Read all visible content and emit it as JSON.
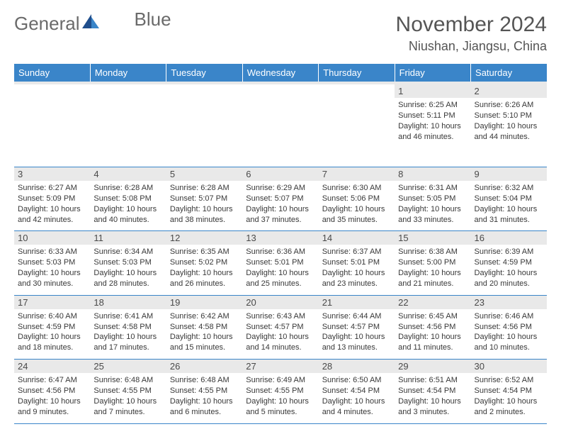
{
  "brand": {
    "name1": "General",
    "name2": "Blue"
  },
  "title": "November 2024",
  "location": "Niushan, Jiangsu, China",
  "colors": {
    "header_bg": "#3a85c9",
    "header_text": "#ffffff",
    "daynum_bg": "#e9e9e9",
    "grid_line": "#3a85c9",
    "body_text": "#383838",
    "title_text": "#555555",
    "logo_text": "#6a6a6a",
    "logo_icon_dark": "#1f4e8c",
    "logo_icon_light": "#3a85c9"
  },
  "day_headers": [
    "Sunday",
    "Monday",
    "Tuesday",
    "Wednesday",
    "Thursday",
    "Friday",
    "Saturday"
  ],
  "weeks": [
    [
      {
        "n": "",
        "sr": "",
        "ss": "",
        "dl": ""
      },
      {
        "n": "",
        "sr": "",
        "ss": "",
        "dl": ""
      },
      {
        "n": "",
        "sr": "",
        "ss": "",
        "dl": ""
      },
      {
        "n": "",
        "sr": "",
        "ss": "",
        "dl": ""
      },
      {
        "n": "",
        "sr": "",
        "ss": "",
        "dl": ""
      },
      {
        "n": "1",
        "sr": "Sunrise: 6:25 AM",
        "ss": "Sunset: 5:11 PM",
        "dl": "Daylight: 10 hours and 46 minutes."
      },
      {
        "n": "2",
        "sr": "Sunrise: 6:26 AM",
        "ss": "Sunset: 5:10 PM",
        "dl": "Daylight: 10 hours and 44 minutes."
      }
    ],
    [
      {
        "n": "3",
        "sr": "Sunrise: 6:27 AM",
        "ss": "Sunset: 5:09 PM",
        "dl": "Daylight: 10 hours and 42 minutes."
      },
      {
        "n": "4",
        "sr": "Sunrise: 6:28 AM",
        "ss": "Sunset: 5:08 PM",
        "dl": "Daylight: 10 hours and 40 minutes."
      },
      {
        "n": "5",
        "sr": "Sunrise: 6:28 AM",
        "ss": "Sunset: 5:07 PM",
        "dl": "Daylight: 10 hours and 38 minutes."
      },
      {
        "n": "6",
        "sr": "Sunrise: 6:29 AM",
        "ss": "Sunset: 5:07 PM",
        "dl": "Daylight: 10 hours and 37 minutes."
      },
      {
        "n": "7",
        "sr": "Sunrise: 6:30 AM",
        "ss": "Sunset: 5:06 PM",
        "dl": "Daylight: 10 hours and 35 minutes."
      },
      {
        "n": "8",
        "sr": "Sunrise: 6:31 AM",
        "ss": "Sunset: 5:05 PM",
        "dl": "Daylight: 10 hours and 33 minutes."
      },
      {
        "n": "9",
        "sr": "Sunrise: 6:32 AM",
        "ss": "Sunset: 5:04 PM",
        "dl": "Daylight: 10 hours and 31 minutes."
      }
    ],
    [
      {
        "n": "10",
        "sr": "Sunrise: 6:33 AM",
        "ss": "Sunset: 5:03 PM",
        "dl": "Daylight: 10 hours and 30 minutes."
      },
      {
        "n": "11",
        "sr": "Sunrise: 6:34 AM",
        "ss": "Sunset: 5:03 PM",
        "dl": "Daylight: 10 hours and 28 minutes."
      },
      {
        "n": "12",
        "sr": "Sunrise: 6:35 AM",
        "ss": "Sunset: 5:02 PM",
        "dl": "Daylight: 10 hours and 26 minutes."
      },
      {
        "n": "13",
        "sr": "Sunrise: 6:36 AM",
        "ss": "Sunset: 5:01 PM",
        "dl": "Daylight: 10 hours and 25 minutes."
      },
      {
        "n": "14",
        "sr": "Sunrise: 6:37 AM",
        "ss": "Sunset: 5:01 PM",
        "dl": "Daylight: 10 hours and 23 minutes."
      },
      {
        "n": "15",
        "sr": "Sunrise: 6:38 AM",
        "ss": "Sunset: 5:00 PM",
        "dl": "Daylight: 10 hours and 21 minutes."
      },
      {
        "n": "16",
        "sr": "Sunrise: 6:39 AM",
        "ss": "Sunset: 4:59 PM",
        "dl": "Daylight: 10 hours and 20 minutes."
      }
    ],
    [
      {
        "n": "17",
        "sr": "Sunrise: 6:40 AM",
        "ss": "Sunset: 4:59 PM",
        "dl": "Daylight: 10 hours and 18 minutes."
      },
      {
        "n": "18",
        "sr": "Sunrise: 6:41 AM",
        "ss": "Sunset: 4:58 PM",
        "dl": "Daylight: 10 hours and 17 minutes."
      },
      {
        "n": "19",
        "sr": "Sunrise: 6:42 AM",
        "ss": "Sunset: 4:58 PM",
        "dl": "Daylight: 10 hours and 15 minutes."
      },
      {
        "n": "20",
        "sr": "Sunrise: 6:43 AM",
        "ss": "Sunset: 4:57 PM",
        "dl": "Daylight: 10 hours and 14 minutes."
      },
      {
        "n": "21",
        "sr": "Sunrise: 6:44 AM",
        "ss": "Sunset: 4:57 PM",
        "dl": "Daylight: 10 hours and 13 minutes."
      },
      {
        "n": "22",
        "sr": "Sunrise: 6:45 AM",
        "ss": "Sunset: 4:56 PM",
        "dl": "Daylight: 10 hours and 11 minutes."
      },
      {
        "n": "23",
        "sr": "Sunrise: 6:46 AM",
        "ss": "Sunset: 4:56 PM",
        "dl": "Daylight: 10 hours and 10 minutes."
      }
    ],
    [
      {
        "n": "24",
        "sr": "Sunrise: 6:47 AM",
        "ss": "Sunset: 4:56 PM",
        "dl": "Daylight: 10 hours and 9 minutes."
      },
      {
        "n": "25",
        "sr": "Sunrise: 6:48 AM",
        "ss": "Sunset: 4:55 PM",
        "dl": "Daylight: 10 hours and 7 minutes."
      },
      {
        "n": "26",
        "sr": "Sunrise: 6:48 AM",
        "ss": "Sunset: 4:55 PM",
        "dl": "Daylight: 10 hours and 6 minutes."
      },
      {
        "n": "27",
        "sr": "Sunrise: 6:49 AM",
        "ss": "Sunset: 4:55 PM",
        "dl": "Daylight: 10 hours and 5 minutes."
      },
      {
        "n": "28",
        "sr": "Sunrise: 6:50 AM",
        "ss": "Sunset: 4:54 PM",
        "dl": "Daylight: 10 hours and 4 minutes."
      },
      {
        "n": "29",
        "sr": "Sunrise: 6:51 AM",
        "ss": "Sunset: 4:54 PM",
        "dl": "Daylight: 10 hours and 3 minutes."
      },
      {
        "n": "30",
        "sr": "Sunrise: 6:52 AM",
        "ss": "Sunset: 4:54 PM",
        "dl": "Daylight: 10 hours and 2 minutes."
      }
    ]
  ]
}
